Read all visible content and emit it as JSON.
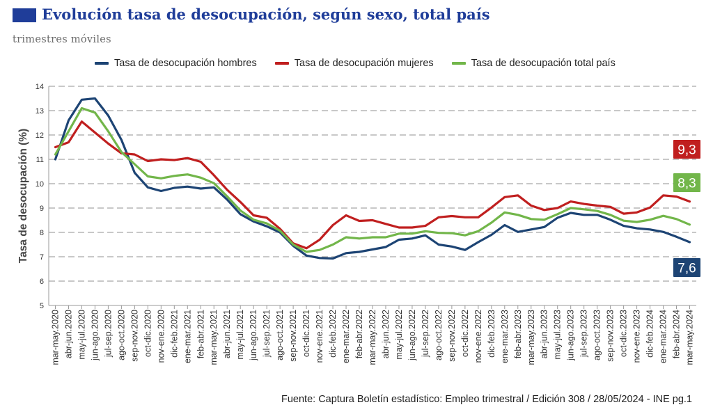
{
  "header": {
    "title": "Evolución tasa de desocupación, según sexo, total país",
    "subtitle": "trimestres móviles"
  },
  "source": "Fuente: Captura Boletín estadístico: Empleo trimestral / Edición 308 / 28/05/2024 - INE pg.1",
  "chart_data": {
    "type": "line",
    "title": "Evolución tasa de desocupación, según sexo, total país",
    "subtitle": "trimestres móviles",
    "xlabel": "",
    "ylabel": "Tasa de desocupación (%)",
    "ylim": [
      5,
      14
    ],
    "yticks": [
      5,
      6,
      7,
      8,
      9,
      10,
      11,
      12,
      13,
      14
    ],
    "grid": "horizontal-dashed",
    "legend_position": "top",
    "x": [
      "mar-may.2020",
      "abr-jun.2020",
      "may-jul.2020",
      "jun-ago.2020",
      "jul-sep.2020",
      "ago-oct.2020",
      "sep-nov.2020",
      "oct-dic.2020",
      "nov-ene.2020",
      "dic-feb.2021",
      "ene-mar.2021",
      "feb-abr.2021",
      "mar-may.2021",
      "abr-jun.2021",
      "may-jul.2021",
      "jun-ago.2021",
      "jul-sep.2021",
      "ago-oct.2021",
      "sep-nov.2021",
      "oct-dic.2021",
      "nov-ene.2021",
      "dic-feb.2022",
      "ene-mar.2022",
      "feb-abr.2022",
      "mar-may.2022",
      "abr-jun.2022",
      "may-jul.2022",
      "jun-ago.2022",
      "jul-sep.2022",
      "ago-oct.2022",
      "sep-nov.2022",
      "oct-dic.2022",
      "nov-ene.2022",
      "dic-feb.2023",
      "ene-mar.2023",
      "feb-abr.2023",
      "mar-may.2023",
      "abr-jun.2023",
      "may-jul.2023",
      "jun-ago.2023",
      "jul-sep.2023",
      "ago-oct.2023",
      "sep-nov.2023",
      "oct-dic.2023",
      "nov-ene.2023",
      "dic-feb.2024",
      "ene-mar.2024",
      "feb-abr.2024",
      "mar-may.2024"
    ],
    "series": [
      {
        "name": "Tasa de desocupación hombres",
        "color": "#1d4474",
        "end_label": "7,6",
        "values": [
          11.0,
          12.6,
          13.45,
          13.5,
          12.8,
          11.8,
          10.45,
          9.85,
          9.7,
          9.83,
          9.88,
          9.8,
          9.85,
          9.35,
          8.75,
          8.45,
          8.25,
          8.0,
          7.45,
          7.05,
          6.95,
          6.93,
          7.15,
          7.2,
          7.3,
          7.4,
          7.7,
          7.75,
          7.88,
          7.5,
          7.42,
          7.28,
          7.6,
          7.9,
          8.3,
          8.02,
          8.12,
          8.22,
          8.6,
          8.8,
          8.72,
          8.72,
          8.52,
          8.27,
          8.17,
          8.12,
          8.02,
          7.82,
          7.6
        ]
      },
      {
        "name": "Tasa de desocupación mujeres",
        "color": "#c01f1f",
        "end_label": "9,3",
        "values": [
          11.5,
          11.7,
          12.55,
          12.1,
          11.65,
          11.25,
          11.2,
          10.93,
          11.0,
          10.97,
          11.05,
          10.9,
          10.35,
          9.75,
          9.25,
          8.7,
          8.6,
          8.15,
          7.55,
          7.35,
          7.7,
          8.3,
          8.7,
          8.47,
          8.5,
          8.35,
          8.2,
          8.2,
          8.27,
          8.62,
          8.67,
          8.62,
          8.62,
          9.02,
          9.45,
          9.52,
          9.1,
          8.92,
          9.0,
          9.27,
          9.17,
          9.1,
          9.05,
          8.77,
          8.82,
          9.02,
          9.52,
          9.47,
          9.27
        ]
      },
      {
        "name": "Tasa de desocupación total país",
        "color": "#72b64a",
        "end_label": "8,3",
        "values": [
          11.2,
          12.15,
          13.1,
          12.92,
          12.15,
          11.3,
          10.8,
          10.3,
          10.22,
          10.32,
          10.38,
          10.25,
          10.02,
          9.48,
          8.9,
          8.52,
          8.37,
          8.07,
          7.5,
          7.2,
          7.28,
          7.5,
          7.8,
          7.75,
          7.8,
          7.8,
          7.95,
          7.95,
          8.05,
          7.98,
          7.97,
          7.88,
          8.05,
          8.4,
          8.82,
          8.72,
          8.55,
          8.52,
          8.75,
          9.0,
          8.95,
          8.88,
          8.72,
          8.48,
          8.43,
          8.52,
          8.68,
          8.55,
          8.32
        ]
      }
    ]
  }
}
